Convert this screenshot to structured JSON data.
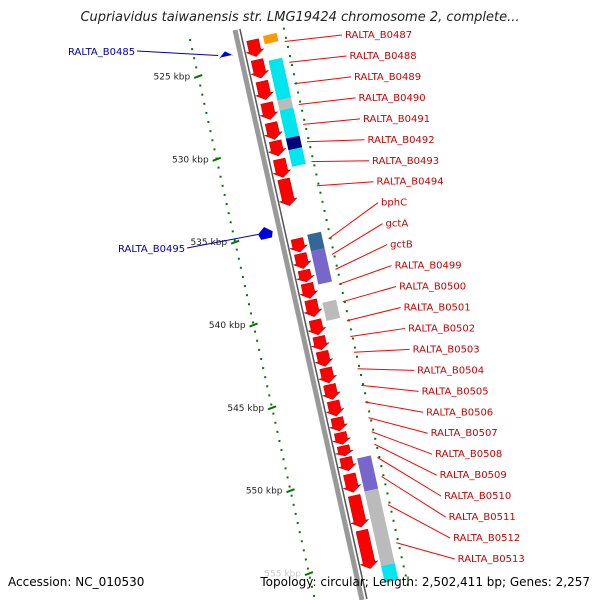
{
  "header": {
    "title": "Cupriavidus taiwanensis str. LMG19424 chromosome 2, complete..."
  },
  "footer": {
    "accession": "Accession: NC_010530",
    "summary": "Topology: circular; Length: 2,502,411 bp; Genes: 2,257"
  },
  "colors": {
    "backbone": "#999999",
    "forward_gene": "#ff0000",
    "reverse_gene": "#0000dd",
    "forward_label": "#cc0000",
    "reverse_label": "#0000aa",
    "ticks": "#007700",
    "cds_cyan": "#00e5ee",
    "cds_gray": "#bbbbbb",
    "cds_violet": "#7766cc",
    "cds_steel": "#336699",
    "cds_navy": "#000077",
    "cds_orange": "#ff9900"
  },
  "axis": {
    "ticks": [
      {
        "kbp": 525,
        "label": "525 kbp"
      },
      {
        "kbp": 530,
        "label": "530 kbp"
      },
      {
        "kbp": 535,
        "label": "535 kbp"
      },
      {
        "kbp": 540,
        "label": "540 kbp"
      },
      {
        "kbp": 545,
        "label": "545 kbp"
      },
      {
        "kbp": 550,
        "label": "550 kbp"
      },
      {
        "kbp": 555,
        "label": "555 kbp"
      }
    ]
  },
  "forward_genes": [
    {
      "label": "RALTA_B0487",
      "start_kbp": 523.6,
      "end_kbp": 524.6
    },
    {
      "label": "RALTA_B0488",
      "start_kbp": 524.8,
      "end_kbp": 525.9
    },
    {
      "label": "RALTA_B0489",
      "start_kbp": 526.1,
      "end_kbp": 527.2
    },
    {
      "label": "RALTA_B0490",
      "start_kbp": 527.4,
      "end_kbp": 528.4
    },
    {
      "label": "RALTA_B0491",
      "start_kbp": 528.6,
      "end_kbp": 529.6
    },
    {
      "label": "RALTA_B0492",
      "start_kbp": 529.7,
      "end_kbp": 530.6
    },
    {
      "label": "RALTA_B0493",
      "start_kbp": 530.8,
      "end_kbp": 531.9
    },
    {
      "label": "RALTA_B0494",
      "start_kbp": 532.0,
      "end_kbp": 533.6
    },
    {
      "label": "bphC",
      "start_kbp": 535.6,
      "end_kbp": 536.4
    },
    {
      "label": "gctA",
      "start_kbp": 536.5,
      "end_kbp": 537.4
    },
    {
      "label": "gctB",
      "start_kbp": 537.5,
      "end_kbp": 538.2
    },
    {
      "label": "RALTA_B0499",
      "start_kbp": 538.3,
      "end_kbp": 539.2
    },
    {
      "label": "RALTA_B0500",
      "start_kbp": 539.3,
      "end_kbp": 540.3
    },
    {
      "label": "RALTA_B0501",
      "start_kbp": 540.5,
      "end_kbp": 541.4
    },
    {
      "label": "RALTA_B0502",
      "start_kbp": 541.5,
      "end_kbp": 542.3
    },
    {
      "label": "RALTA_B0503",
      "start_kbp": 542.4,
      "end_kbp": 543.3
    },
    {
      "label": "RALTA_B0504",
      "start_kbp": 543.4,
      "end_kbp": 544.3
    },
    {
      "label": "RALTA_B0505",
      "start_kbp": 544.4,
      "end_kbp": 545.3
    },
    {
      "label": "RALTA_B0506",
      "start_kbp": 545.4,
      "end_kbp": 546.3
    },
    {
      "label": "RALTA_B0507",
      "start_kbp": 546.4,
      "end_kbp": 547.2
    },
    {
      "label": "RALTA_B0508",
      "start_kbp": 547.3,
      "end_kbp": 548.0
    },
    {
      "label": "RALTA_B0509",
      "start_kbp": 548.1,
      "end_kbp": 548.7
    },
    {
      "label": "RALTA_B0510",
      "start_kbp": 548.8,
      "end_kbp": 549.6
    },
    {
      "label": "RALTA_B0511",
      "start_kbp": 549.8,
      "end_kbp": 550.9
    },
    {
      "label": "RALTA_B0512",
      "start_kbp": 551.1,
      "end_kbp": 553.0
    },
    {
      "label": "RALTA_B0513",
      "start_kbp": 553.2,
      "end_kbp": 555.5
    }
  ],
  "reverse_genes": [
    {
      "label": "RALTA_B0485",
      "start_kbp": 523.9,
      "end_kbp": 524.2
    },
    {
      "label": "RALTA_B0495",
      "start_kbp": 534.5,
      "end_kbp": 535.2
    }
  ],
  "cds_features": [
    {
      "color_key": "cds_orange",
      "start_kbp": 523.5,
      "end_kbp": 524.0
    },
    {
      "color_key": "cds_cyan",
      "start_kbp": 525.0,
      "end_kbp": 527.4
    },
    {
      "color_key": "cds_gray",
      "start_kbp": 527.4,
      "end_kbp": 528.0
    },
    {
      "color_key": "cds_cyan",
      "start_kbp": 528.0,
      "end_kbp": 529.7
    },
    {
      "color_key": "cds_navy",
      "start_kbp": 529.7,
      "end_kbp": 530.4
    },
    {
      "color_key": "cds_cyan",
      "start_kbp": 530.4,
      "end_kbp": 531.4
    },
    {
      "color_key": "cds_steel",
      "start_kbp": 535.5,
      "end_kbp": 536.5
    },
    {
      "color_key": "cds_violet",
      "start_kbp": 536.5,
      "end_kbp": 538.5
    },
    {
      "color_key": "cds_gray",
      "start_kbp": 539.6,
      "end_kbp": 540.7
    },
    {
      "color_key": "cds_violet",
      "start_kbp": 549.0,
      "end_kbp": 551.0
    },
    {
      "color_key": "cds_gray",
      "start_kbp": 551.0,
      "end_kbp": 555.5
    },
    {
      "color_key": "cds_cyan",
      "start_kbp": 555.5,
      "end_kbp": 556.5
    }
  ]
}
